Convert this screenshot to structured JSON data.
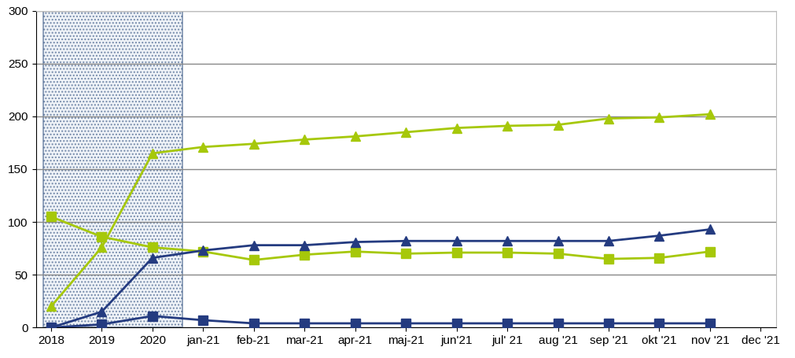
{
  "chart_data": {
    "type": "line",
    "categories": [
      "2018",
      "2019",
      "2020",
      "jan-21",
      "feb-21",
      "mar-21",
      "apr-21",
      "maj-21",
      "jun'21",
      "jul' 21",
      "aug '21",
      "sep '21",
      "okt '21",
      "nov '21",
      "dec '21"
    ],
    "series": [
      {
        "color": "#a6c80a",
        "marker": "triangle",
        "line_style": "solid",
        "values": [
          20,
          76,
          165,
          171,
          174,
          178,
          181,
          185,
          189,
          191,
          192,
          198,
          199,
          202,
          null
        ]
      },
      {
        "color": "#a6c80a",
        "marker": "square",
        "line_style": "solid",
        "values": [
          105,
          86,
          76,
          72,
          64,
          69,
          72,
          70,
          71,
          71,
          70,
          65,
          66,
          72,
          null
        ]
      },
      {
        "color": "#243b80",
        "marker": "triangle",
        "line_style": "solid",
        "values": [
          0,
          15,
          66,
          73,
          78,
          78,
          81,
          82,
          82,
          82,
          82,
          82,
          87,
          93,
          null
        ]
      },
      {
        "color": "#243b80",
        "marker": "square",
        "line_style": "solid",
        "values": [
          0,
          3,
          11,
          7,
          4,
          4,
          4,
          4,
          4,
          4,
          4,
          4,
          4,
          4,
          null
        ]
      }
    ],
    "ylim": [
      0,
      300
    ],
    "yticks": [
      0,
      50,
      100,
      150,
      200,
      250,
      300
    ],
    "grid": true
  }
}
